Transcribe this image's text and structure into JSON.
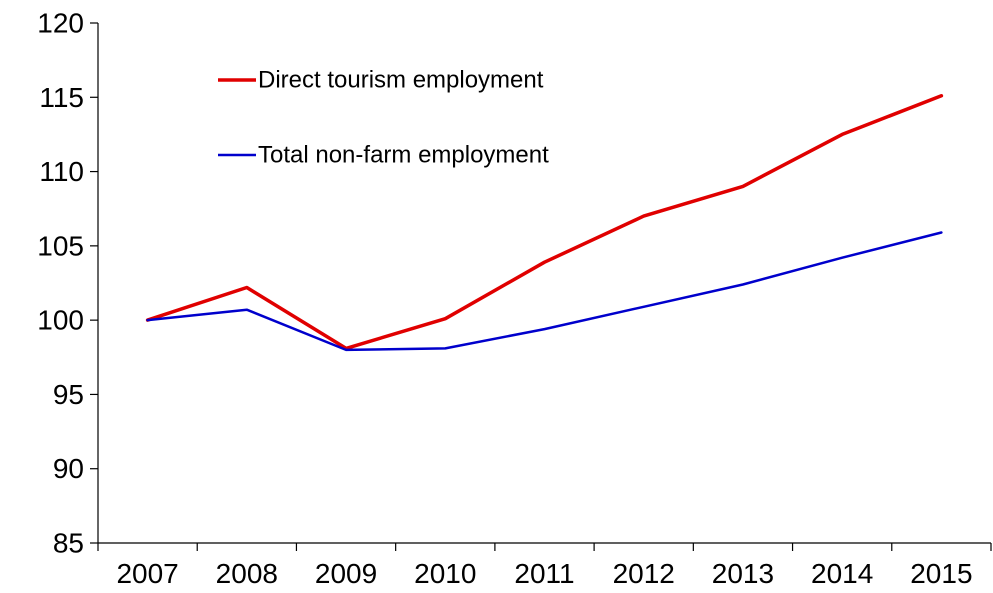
{
  "chart_data": {
    "type": "line",
    "title": "",
    "xlabel": "",
    "ylabel": "",
    "categories": [
      "2007",
      "2008",
      "2009",
      "2010",
      "2011",
      "2012",
      "2013",
      "2014",
      "2015"
    ],
    "ylim": [
      85,
      120
    ],
    "yticks": [
      85,
      90,
      95,
      100,
      105,
      110,
      115,
      120
    ],
    "grid": false,
    "legend_position": "top-left",
    "series": [
      {
        "name": "Direct tourism employment",
        "color": "#e00000",
        "values": [
          100.0,
          102.2,
          98.1,
          100.1,
          103.9,
          107.0,
          109.0,
          112.5,
          115.1
        ]
      },
      {
        "name": "Total non-farm employment",
        "color": "#0000cc",
        "values": [
          100.0,
          100.7,
          98.0,
          98.1,
          99.4,
          100.9,
          102.4,
          104.2,
          105.9
        ]
      }
    ]
  }
}
